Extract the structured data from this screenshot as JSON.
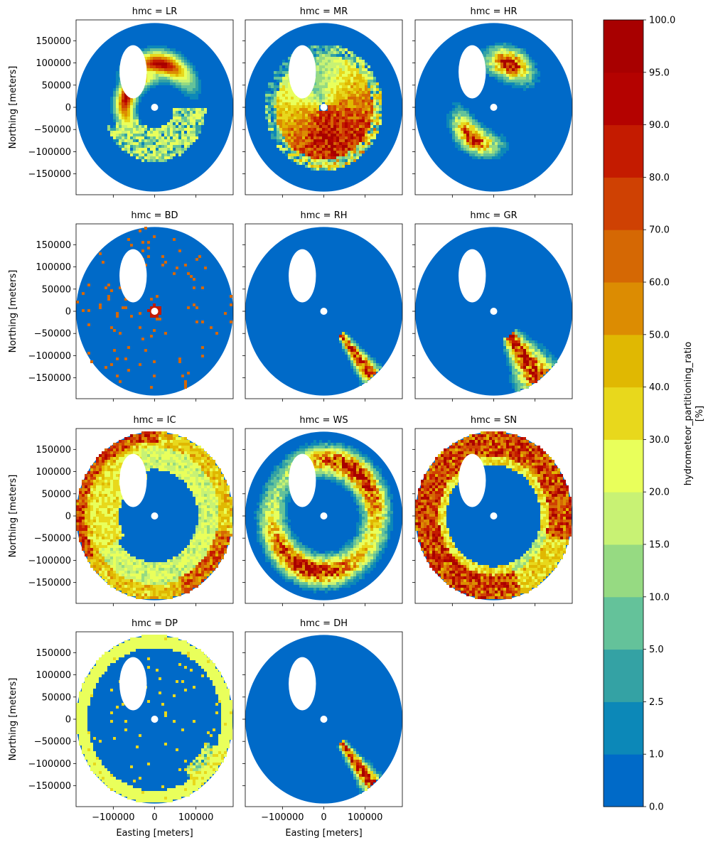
{
  "figure": {
    "facet_prefix": "hmc = ",
    "x_label": "Easting [meters]",
    "y_label": "Northing [meters]",
    "colorbar_label_line1": "hydrometeor_partitioning_ratio",
    "colorbar_label_line2": "[%]"
  },
  "chart_data": {
    "type": "heatmap",
    "facet_variable": "hmc",
    "panels": [
      {
        "name": "LR",
        "pattern": "lr"
      },
      {
        "name": "MR",
        "pattern": "mr"
      },
      {
        "name": "HR",
        "pattern": "hr"
      },
      {
        "name": "BD",
        "pattern": "bd"
      },
      {
        "name": "RH",
        "pattern": "rh"
      },
      {
        "name": "GR",
        "pattern": "gr"
      },
      {
        "name": "IC",
        "pattern": "ic"
      },
      {
        "name": "WS",
        "pattern": "ws"
      },
      {
        "name": "SN",
        "pattern": "sn"
      },
      {
        "name": "DP",
        "pattern": "dp"
      },
      {
        "name": "DH",
        "pattern": "dh"
      }
    ],
    "xlim": [
      -190000,
      190000
    ],
    "ylim": [
      -197000,
      197000
    ],
    "xticks": [
      -100000,
      0,
      100000
    ],
    "xtick_labels": [
      "−100000",
      "0",
      "100000"
    ],
    "yticks": [
      -150000,
      -100000,
      -50000,
      0,
      50000,
      100000,
      150000
    ],
    "ytick_labels": [
      "−150000",
      "−100000",
      "−50000",
      "0",
      "50000",
      "100000",
      "150000"
    ],
    "radar_range": 190000,
    "colorbar": {
      "boundaries": [
        0.0,
        1.0,
        2.5,
        5.0,
        10.0,
        15.0,
        20.0,
        30.0,
        40.0,
        50.0,
        60.0,
        70.0,
        80.0,
        90.0,
        95.0,
        100.0
      ],
      "tick_labels": [
        "0.0",
        "1.0",
        "2.5",
        "5.0",
        "10.0",
        "15.0",
        "20.0",
        "30.0",
        "40.0",
        "50.0",
        "60.0",
        "70.0",
        "80.0",
        "90.0",
        "95.0",
        "100.0"
      ],
      "colors": [
        "#006ac8",
        "#0c88b8",
        "#34a2a4",
        "#64c29a",
        "#96da82",
        "#c8f274",
        "#e9ff5b",
        "#e8d81c",
        "#e0b802",
        "#dc8c02",
        "#d56804",
        "#cf4103",
        "#c41b00",
        "#b40200",
        "#a80000"
      ]
    }
  }
}
